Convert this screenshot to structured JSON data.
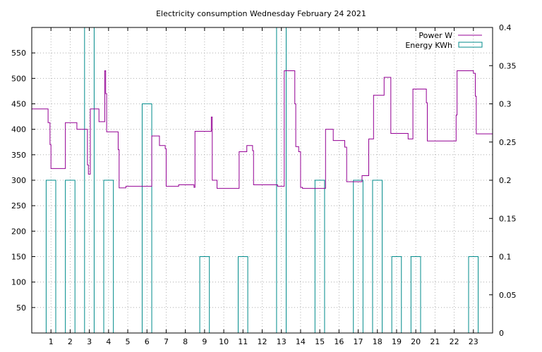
{
  "chart_data": {
    "type": "line",
    "title": "Electricity consumption Wednesday February 24 2021",
    "xlim": [
      0,
      24
    ],
    "x_ticks": [
      "1",
      "2",
      "3",
      "4",
      "5",
      "6",
      "7",
      "8",
      "9",
      "10",
      "11",
      "12",
      "13",
      "14",
      "15",
      "16",
      "17",
      "18",
      "19",
      "20",
      "21",
      "22",
      "23"
    ],
    "y_left_lim": [
      0,
      600
    ],
    "y_left_ticks": [
      "50",
      "100",
      "150",
      "200",
      "250",
      "300",
      "350",
      "400",
      "450",
      "500",
      "550"
    ],
    "y_right_lim": [
      0,
      0.4
    ],
    "y_right_ticks": [
      "0",
      "0.05",
      "0.1",
      "0.15",
      "0.2",
      "0.25",
      "0.3",
      "0.35",
      "0.4"
    ],
    "grid": "dotted",
    "legend_position": "top-right",
    "series": [
      {
        "name": "Power W",
        "axis": "left",
        "color": "#940094",
        "style": "step",
        "points": [
          [
            0,
            440
          ],
          [
            0.85,
            440
          ],
          [
            0.85,
            413
          ],
          [
            0.95,
            413
          ],
          [
            0.95,
            370
          ],
          [
            1.0,
            370
          ],
          [
            1.0,
            323
          ],
          [
            1.75,
            323
          ],
          [
            1.75,
            413
          ],
          [
            2.35,
            413
          ],
          [
            2.35,
            400
          ],
          [
            2.8,
            400
          ],
          [
            2.9,
            400
          ],
          [
            2.9,
            330
          ],
          [
            2.95,
            330
          ],
          [
            2.95,
            312
          ],
          [
            3.05,
            312
          ],
          [
            3.05,
            440
          ],
          [
            3.5,
            440
          ],
          [
            3.5,
            415
          ],
          [
            3.8,
            415
          ],
          [
            3.8,
            515
          ],
          [
            3.85,
            515
          ],
          [
            3.85,
            470
          ],
          [
            3.9,
            470
          ],
          [
            3.9,
            395
          ],
          [
            4.5,
            395
          ],
          [
            4.5,
            360
          ],
          [
            4.55,
            360
          ],
          [
            4.55,
            285
          ],
          [
            4.9,
            285
          ],
          [
            4.9,
            288
          ],
          [
            6.25,
            288
          ],
          [
            6.25,
            387
          ],
          [
            6.65,
            387
          ],
          [
            6.65,
            368
          ],
          [
            6.95,
            368
          ],
          [
            6.95,
            362
          ],
          [
            7.0,
            362
          ],
          [
            7.0,
            288
          ],
          [
            7.65,
            288
          ],
          [
            7.65,
            291
          ],
          [
            8.45,
            291
          ],
          [
            8.45,
            286
          ],
          [
            8.5,
            286
          ],
          [
            8.5,
            396
          ],
          [
            9.35,
            396
          ],
          [
            9.35,
            424
          ],
          [
            9.4,
            424
          ],
          [
            9.4,
            300
          ],
          [
            9.65,
            300
          ],
          [
            9.65,
            284
          ],
          [
            10.8,
            284
          ],
          [
            10.8,
            356
          ],
          [
            11.2,
            356
          ],
          [
            11.2,
            368
          ],
          [
            11.5,
            368
          ],
          [
            11.5,
            358
          ],
          [
            11.55,
            358
          ],
          [
            11.55,
            291
          ],
          [
            12.8,
            291
          ],
          [
            12.8,
            288
          ],
          [
            13.15,
            288
          ],
          [
            13.15,
            515
          ],
          [
            13.7,
            515
          ],
          [
            13.7,
            450
          ],
          [
            13.75,
            450
          ],
          [
            13.75,
            366
          ],
          [
            13.9,
            366
          ],
          [
            13.9,
            356
          ],
          [
            14.0,
            356
          ],
          [
            14.0,
            286
          ],
          [
            14.1,
            286
          ],
          [
            14.1,
            284
          ],
          [
            15.3,
            284
          ],
          [
            15.3,
            400
          ],
          [
            15.7,
            400
          ],
          [
            15.7,
            378
          ],
          [
            16.3,
            378
          ],
          [
            16.3,
            365
          ],
          [
            16.4,
            365
          ],
          [
            16.4,
            297
          ],
          [
            17.2,
            297
          ],
          [
            17.2,
            309
          ],
          [
            17.55,
            309
          ],
          [
            17.55,
            381
          ],
          [
            17.8,
            381
          ],
          [
            17.8,
            467
          ],
          [
            18.35,
            467
          ],
          [
            18.35,
            502
          ],
          [
            18.7,
            502
          ],
          [
            18.7,
            392
          ],
          [
            19.6,
            392
          ],
          [
            19.6,
            381
          ],
          [
            19.85,
            381
          ],
          [
            19.85,
            479
          ],
          [
            20.55,
            479
          ],
          [
            20.55,
            452
          ],
          [
            20.6,
            452
          ],
          [
            20.6,
            377
          ],
          [
            22.1,
            377
          ],
          [
            22.1,
            428
          ],
          [
            22.15,
            428
          ],
          [
            22.15,
            515
          ],
          [
            23.0,
            515
          ],
          [
            23.0,
            510
          ],
          [
            23.1,
            510
          ],
          [
            23.1,
            465
          ],
          [
            23.15,
            465
          ],
          [
            23.15,
            391
          ],
          [
            24.0,
            391
          ]
        ]
      },
      {
        "name": "Energy KWh",
        "axis": "right",
        "color": "#008b8b",
        "style": "boxes",
        "bars": [
          {
            "x": 0.75,
            "value": 0.2
          },
          {
            "x": 1.75,
            "value": 0.2
          },
          {
            "x": 2.75,
            "value": 0.4
          },
          {
            "x": 3.75,
            "value": 0.2
          },
          {
            "x": 5.75,
            "value": 0.3
          },
          {
            "x": 8.75,
            "value": 0.1
          },
          {
            "x": 10.75,
            "value": 0.1
          },
          {
            "x": 12.75,
            "value": 0.4
          },
          {
            "x": 14.75,
            "value": 0.2
          },
          {
            "x": 16.75,
            "value": 0.2
          },
          {
            "x": 17.75,
            "value": 0.2
          },
          {
            "x": 18.75,
            "value": 0.1
          },
          {
            "x": 19.75,
            "value": 0.1
          },
          {
            "x": 22.75,
            "value": 0.1
          }
        ],
        "bar_width": 0.5
      }
    ]
  }
}
